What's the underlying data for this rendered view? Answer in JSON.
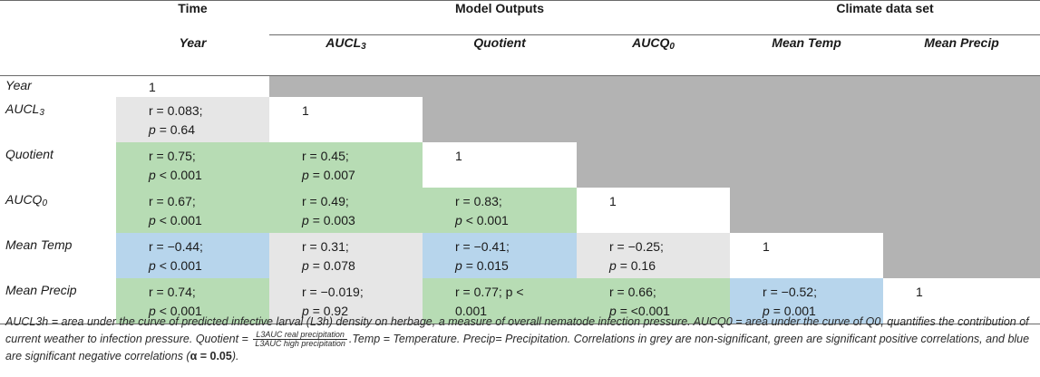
{
  "header": {
    "groups": {
      "time": "Time",
      "model_outputs": "Model Outputs",
      "climate": "Climate data set"
    },
    "columns": [
      {
        "base": "Year",
        "sub": ""
      },
      {
        "base": "AUCL",
        "sub": "3"
      },
      {
        "base": "Quotient",
        "sub": ""
      },
      {
        "base": "AUCQ",
        "sub": "0"
      },
      {
        "base": "Mean Temp",
        "sub": ""
      },
      {
        "base": "Mean Precip",
        "sub": ""
      }
    ]
  },
  "rows": [
    {
      "label": "Year",
      "sub": "",
      "cells": [
        {
          "r": "1",
          "p": "",
          "color": "none"
        }
      ]
    },
    {
      "label": "AUCL",
      "sub": "3",
      "cells": [
        {
          "r": "r = 0.083;",
          "p": "= 0.64",
          "color": "grey"
        },
        {
          "r": "1",
          "p": "",
          "color": "none"
        }
      ]
    },
    {
      "label": "Quotient",
      "sub": "",
      "cells": [
        {
          "r": "r = 0.75;",
          "p": "< 0.001",
          "color": "green"
        },
        {
          "r": "r = 0.45;",
          "p": "= 0.007",
          "color": "green"
        },
        {
          "r": "1",
          "p": "",
          "color": "none"
        }
      ]
    },
    {
      "label": "AUCQ",
      "sub": "0",
      "cells": [
        {
          "r": "r = 0.67;",
          "p": "< 0.001",
          "color": "green"
        },
        {
          "r": "r = 0.49;",
          "p": "= 0.003",
          "color": "green"
        },
        {
          "r": "r = 0.83;",
          "p": "< 0.001",
          "color": "green"
        },
        {
          "r": "1",
          "p": "",
          "color": "none"
        }
      ]
    },
    {
      "label": "Mean Temp",
      "sub": "",
      "cells": [
        {
          "r": "r = −0.44;",
          "p": "< 0.001",
          "color": "blue"
        },
        {
          "r": "r = 0.31;",
          "p": "= 0.078",
          "color": "grey"
        },
        {
          "r": "r = −0.41;",
          "p": "= 0.015",
          "color": "blue"
        },
        {
          "r": "r = −0.25;",
          "p": "= 0.16",
          "color": "grey"
        },
        {
          "r": "1",
          "p": "",
          "color": "none"
        }
      ]
    },
    {
      "label": "Mean Precip",
      "sub": "",
      "cells": [
        {
          "r": "r = 0.74;",
          "p": "< 0.001",
          "color": "green"
        },
        {
          "r": "r = −0.019;",
          "p": "= 0.92",
          "color": "grey"
        },
        {
          "r": "r = 0.77; p <",
          "p": "0.001",
          "color": "green"
        },
        {
          "r": "r = 0.66;",
          "p": "= <0.001",
          "color": "green"
        },
        {
          "r": "r = −0.52;",
          "p": "= 0.001",
          "color": "blue"
        },
        {
          "r": "1",
          "p": "",
          "color": "none"
        }
      ]
    }
  ],
  "p_letter": "p",
  "footnote": {
    "part1": "AUCL3h = area under the curve of predicted infective larval (L3h) density on herbage, a measure of overall nematode infection pressure. AUCQ0 = area under the curve of Q0, quantifies the contribution of current weather to infection pressure. Quotient =",
    "frac_num": "L3AUC real precipitation",
    "frac_den": "L3AUC high precipitation",
    "part2": ".Temp = Temperature. Precip= Precipitation. Correlations in grey are non-significant, green are significant positive correlations, and blue are significant negative correlations (",
    "alpha": "α = 0.05",
    "part3": ")."
  },
  "colors": {
    "grey": "#e6e6e6",
    "green": "#b7dcb4",
    "blue": "#b7d5ec",
    "upper_triangle": "#b3b3b3"
  }
}
